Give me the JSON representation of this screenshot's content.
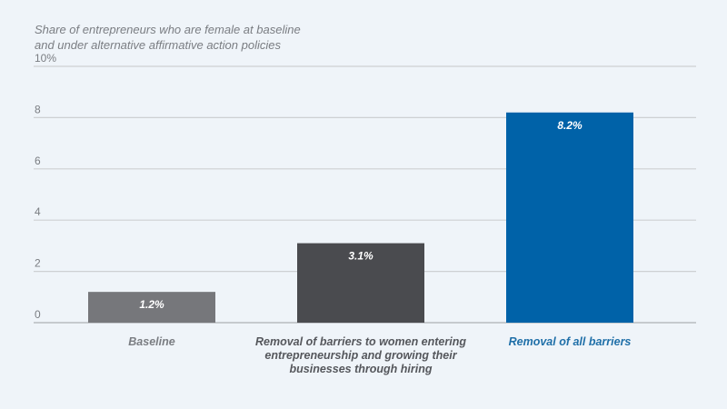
{
  "chart_data": {
    "type": "bar",
    "title": "Share of entrepreneurs who are female at baseline and under alternative affirmative action policies",
    "title_lines": [
      "Share of entrepreneurs who are female at baseline",
      "and under alternative affirmative action policies"
    ],
    "xlabel": "",
    "ylabel": "",
    "ylim": [
      0,
      10
    ],
    "yticks": [
      0,
      2,
      4,
      6,
      8,
      10
    ],
    "ytick_labels": [
      "0",
      "2",
      "4",
      "6",
      "8",
      "10%"
    ],
    "grid": true,
    "categories": [
      "Baseline",
      "Removal of barriers to women entering entrepreneurship and growing their businesses through hiring",
      "Removal of all barriers"
    ],
    "category_lines": [
      [
        "Baseline"
      ],
      [
        "Removal of barriers to women entering",
        "entrepreneurship and growing their",
        "businesses through hiring"
      ],
      [
        "Removal of all barriers"
      ]
    ],
    "values": [
      1.2,
      3.1,
      8.2
    ],
    "data_labels": [
      "1.2%",
      "3.1%",
      "8.2%"
    ],
    "bar_colors": [
      "#76777b",
      "#4a4b4f",
      "#0062a8"
    ],
    "category_label_colors": [
      "#7a7d82",
      "#55575c",
      "#1f6fa8"
    ]
  }
}
